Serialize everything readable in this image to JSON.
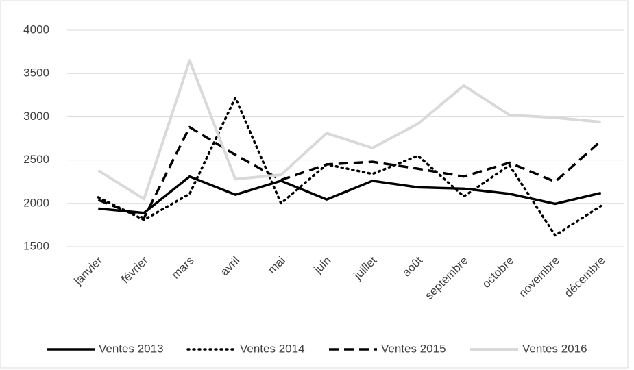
{
  "chart_data": {
    "type": "line",
    "categories": [
      "janvier",
      "février",
      "mars",
      "avril",
      "mai",
      "juin",
      "juillet",
      "août",
      "septembre",
      "octobre",
      "novembre",
      "décembre"
    ],
    "series": [
      {
        "name": "Ventes 2013",
        "color": "#000000",
        "dash": "solid",
        "values": [
          1940,
          1890,
          2310,
          2100,
          2260,
          2045,
          2260,
          2185,
          2170,
          2110,
          1995,
          2120
        ]
      },
      {
        "name": "Ventes 2014",
        "color": "#000000",
        "dash": "dot",
        "values": [
          2070,
          1810,
          2110,
          3220,
          2000,
          2450,
          2340,
          2550,
          2080,
          2440,
          1630,
          1970
        ]
      },
      {
        "name": "Ventes 2015",
        "color": "#000000",
        "dash": "dash",
        "values": [
          2040,
          1830,
          2880,
          2560,
          2270,
          2450,
          2480,
          2400,
          2310,
          2470,
          2250,
          2720
        ]
      },
      {
        "name": "Ventes 2016",
        "color": "#d9d9d9",
        "dash": "solid",
        "values": [
          2380,
          2050,
          3650,
          2280,
          2330,
          2810,
          2640,
          2920,
          3360,
          3020,
          2990,
          2940
        ]
      }
    ],
    "ylim": [
      1500,
      4000
    ],
    "yticks": [
      1500,
      2000,
      2500,
      3000,
      3500,
      4000
    ],
    "grid": true,
    "legend": "bottom"
  }
}
